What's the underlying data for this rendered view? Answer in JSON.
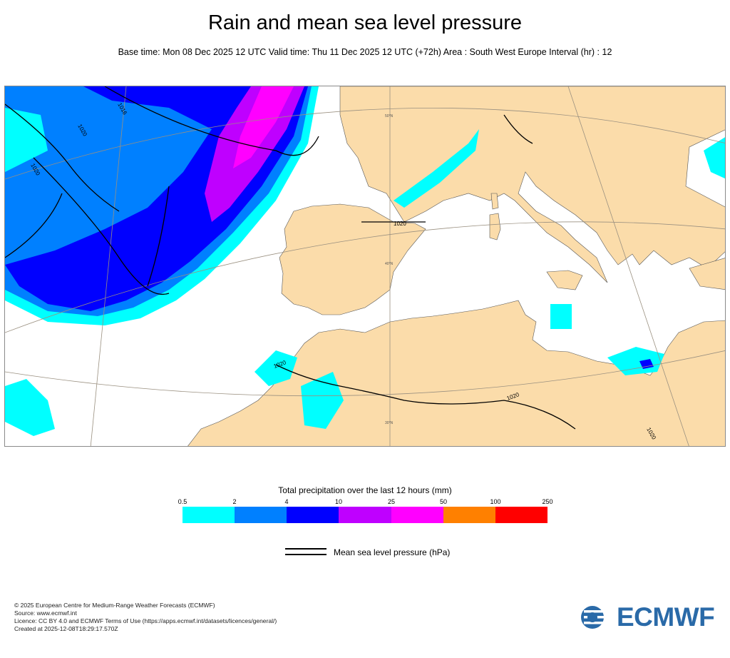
{
  "header": {
    "title": "Rain and mean sea level pressure",
    "subtitle": "Base time: Mon 08 Dec 2025 12 UTC Valid time: Thu 11 Dec 2025 12 UTC (+72h) Area : South West Europe Interval (hr) : 12"
  },
  "map": {
    "isobar_labels": [
      "1016",
      "1020",
      "1020",
      "1020",
      "1020",
      "1020",
      "1020"
    ],
    "graticule_labels": [
      "50°N",
      "40°N",
      "30°N"
    ]
  },
  "legend": {
    "title": "Total precipitation over the last 12 hours (mm)",
    "ticks": [
      "0.5",
      "2",
      "4",
      "10",
      "25",
      "50",
      "100",
      "250"
    ],
    "colors": [
      "#00ffff",
      "#0080ff",
      "#0000ff",
      "#bf00ff",
      "#ff00ff",
      "#ff8000",
      "#ff0000"
    ],
    "pressure_label": "Mean sea level pressure (hPa)"
  },
  "colors": {
    "land": "#fbdcaa",
    "sea": "#ffffff",
    "isobar": "#000000",
    "logo": "#2a6aa8"
  },
  "footer": {
    "line1": "© 2025 European Centre for Medium-Range Weather Forecasts (ECMWF)",
    "line2": "Source: www.ecmwf.int",
    "line3": "Licence: CC BY 4.0 and ECMWF Terms of Use (https://apps.ecmwf.int/datasets/licences/general/)",
    "line4": "Created at 2025-12-08T18:29:17.570Z",
    "logo_text": "ECMWF"
  }
}
